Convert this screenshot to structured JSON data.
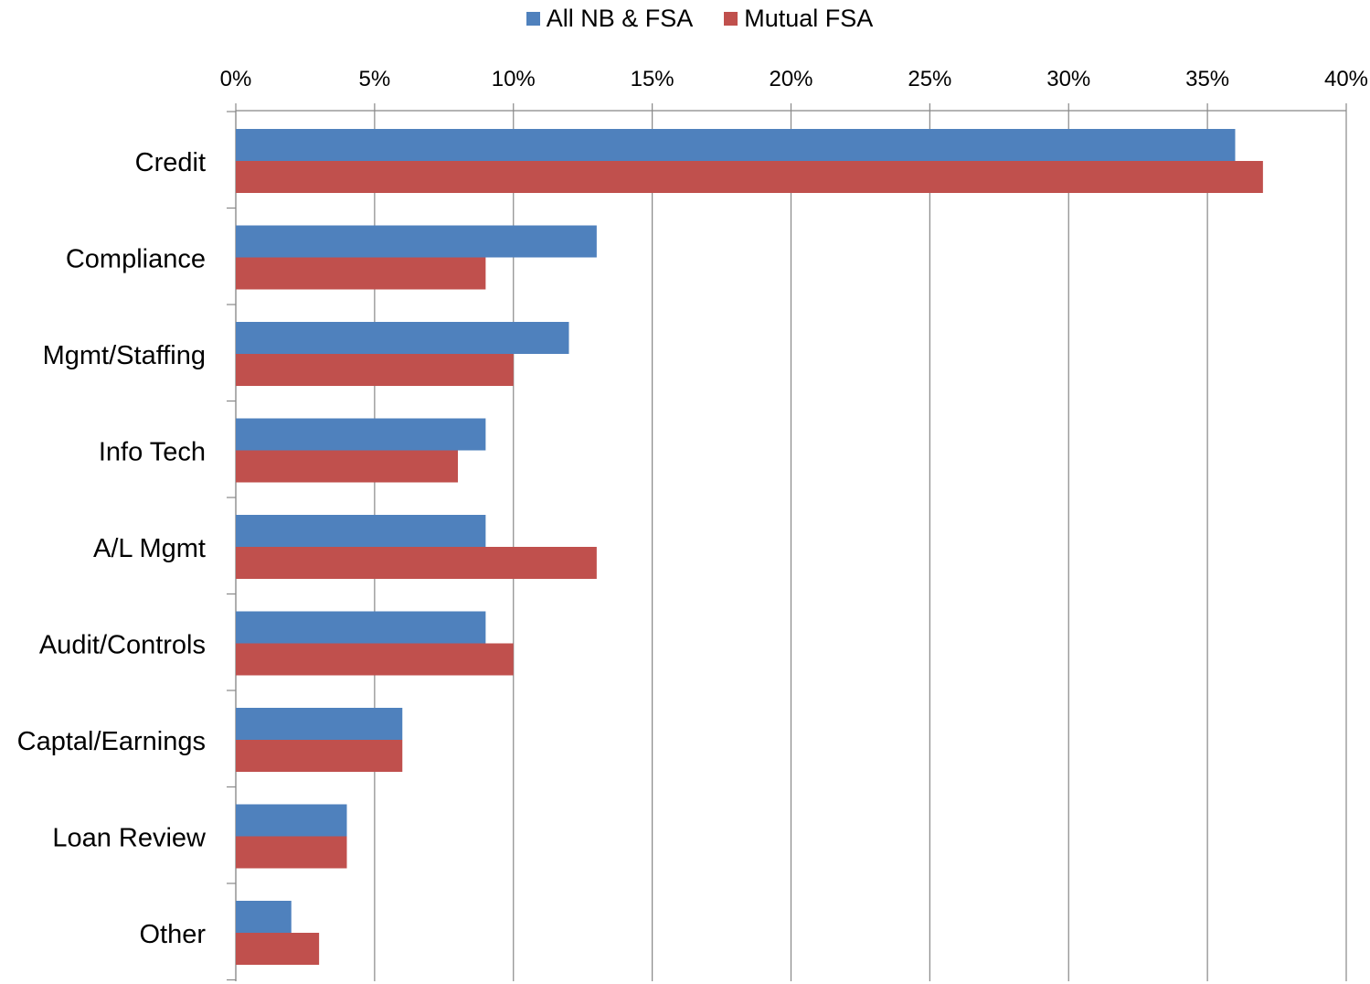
{
  "chart_data": {
    "type": "bar",
    "orientation": "horizontal",
    "categories": [
      "Credit",
      "Compliance",
      "Mgmt/Staffing",
      "Info Tech",
      "A/L Mgmt",
      "Audit/Controls",
      "Captal/Earnings",
      "Loan Review",
      "Other"
    ],
    "series": [
      {
        "name": "All NB & FSA",
        "color": "#4F81BD",
        "values": [
          36,
          13,
          12,
          9,
          9,
          9,
          6,
          4,
          2
        ]
      },
      {
        "name": "Mutual FSA",
        "color": "#C0504D",
        "values": [
          37,
          9,
          10,
          8,
          13,
          10,
          6,
          4,
          3
        ]
      }
    ],
    "x_ticks": [
      "0%",
      "5%",
      "10%",
      "15%",
      "20%",
      "25%",
      "30%",
      "35%",
      "40%"
    ],
    "xlim": [
      0,
      40
    ],
    "x_axis_position": "top",
    "grid": true,
    "legend_position": "top-center",
    "title": "",
    "xlabel": "",
    "ylabel": ""
  }
}
